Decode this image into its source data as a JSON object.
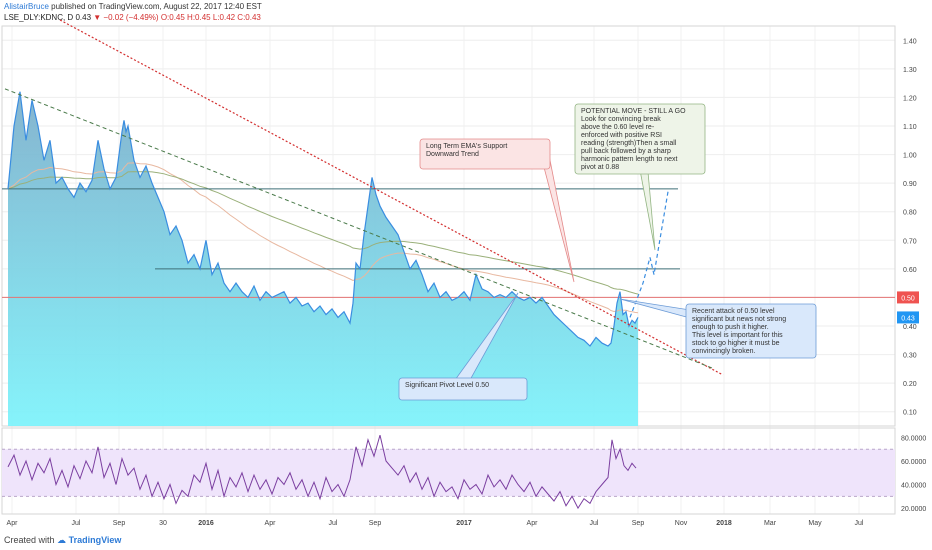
{
  "header": {
    "author": "AlistairBruce",
    "published": "published on TradingView.com, August 22, 2017 12:40 EST",
    "symbol": "LSE_DLY:KDNC, D",
    "last": "0.43",
    "change": "−0.02 (−4.49%)",
    "ohlc": "O:0.45 H:0.45 L:0.42 C:0.43"
  },
  "footer": {
    "created_with": "Created with",
    "brand": "TradingView"
  },
  "colors": {
    "price_line": "#3a8de0",
    "price_fill_top": "#7fb0cc",
    "price_fill_bottom": "#7ff3fb",
    "rsi": "#7b3fa0",
    "rsi_band": "#efe4fb",
    "ema_fast": "#e8b8a0",
    "ema_slow": "#9ab07a",
    "trend_red": "#d32f2f",
    "trend_green": "#4a7a4a",
    "level_red": "#e57373",
    "level_teal": "#3f6f78"
  },
  "chart_data": {
    "type": "line",
    "x_ticks": [
      "Apr",
      "Jul",
      "Sep",
      "30",
      "2016",
      "Apr",
      "Jul",
      "Sep",
      "2017",
      "Apr",
      "Jul",
      "Sep",
      "Nov",
      "2018",
      "Mar",
      "May",
      "Jul"
    ],
    "y_ticks": [
      "1.40",
      "1.30",
      "1.20",
      "1.10",
      "1.00",
      "0.90",
      "0.80",
      "0.70",
      "0.60",
      "0.50",
      "0.40",
      "0.30",
      "0.20",
      "0.10"
    ],
    "ylim": [
      0.05,
      1.45
    ],
    "price_labels": [
      "0.50",
      "0.43"
    ],
    "rsi_ticks": [
      "80.0000",
      "60.0000",
      "40.0000",
      "20.0000"
    ],
    "rsi_ylim": [
      15,
      88
    ],
    "rsi_band": [
      30,
      70
    ],
    "price_series": {
      "name": "KDNC",
      "x": [
        0,
        6,
        12,
        18,
        24,
        30,
        36,
        42,
        48,
        54,
        60,
        66,
        72,
        78,
        84,
        90,
        96,
        102,
        108,
        114,
        116,
        118,
        120,
        126,
        132,
        138,
        144,
        150,
        156,
        162,
        168,
        174,
        180,
        186,
        192,
        198,
        204,
        210,
        216,
        222,
        228,
        234,
        240,
        246,
        252,
        258,
        264,
        270,
        276,
        282,
        288,
        294,
        300,
        306,
        312,
        318,
        324,
        330,
        336,
        342,
        345,
        348,
        352,
        356,
        360,
        364,
        368,
        372,
        378,
        384,
        390,
        396,
        402,
        408,
        414,
        420,
        426,
        432,
        438,
        444,
        450,
        456,
        462,
        468,
        474,
        480,
        486,
        492,
        498,
        504,
        510,
        516,
        522,
        528,
        534,
        540,
        546,
        552,
        558,
        564,
        570,
        576,
        582,
        588,
        594,
        600,
        603,
        606,
        609,
        612,
        615,
        618,
        621,
        624,
        627,
        630
      ],
      "y": [
        0.88,
        1.1,
        1.22,
        1.05,
        1.19,
        1.1,
        0.98,
        1.05,
        0.9,
        0.92,
        0.88,
        0.85,
        0.9,
        0.87,
        0.91,
        1.05,
        0.95,
        0.88,
        0.92,
        1.08,
        1.12,
        1.08,
        1.1,
        0.98,
        0.92,
        0.96,
        0.9,
        0.85,
        0.8,
        0.72,
        0.75,
        0.7,
        0.62,
        0.65,
        0.6,
        0.7,
        0.58,
        0.62,
        0.55,
        0.52,
        0.55,
        0.52,
        0.5,
        0.54,
        0.49,
        0.52,
        0.5,
        0.51,
        0.52,
        0.48,
        0.5,
        0.47,
        0.48,
        0.45,
        0.47,
        0.44,
        0.46,
        0.43,
        0.45,
        0.41,
        0.48,
        0.62,
        0.6,
        0.72,
        0.82,
        0.92,
        0.86,
        0.82,
        0.78,
        0.75,
        0.72,
        0.66,
        0.6,
        0.63,
        0.58,
        0.52,
        0.55,
        0.5,
        0.52,
        0.49,
        0.5,
        0.52,
        0.49,
        0.58,
        0.53,
        0.52,
        0.5,
        0.51,
        0.5,
        0.52,
        0.5,
        0.49,
        0.5,
        0.48,
        0.5,
        0.47,
        0.44,
        0.42,
        0.4,
        0.38,
        0.36,
        0.35,
        0.33,
        0.36,
        0.34,
        0.33,
        0.34,
        0.4,
        0.48,
        0.52,
        0.44,
        0.45,
        0.4,
        0.42,
        0.41,
        0.43
      ]
    },
    "rsi_series": {
      "name": "RSI",
      "x": [
        0,
        6,
        12,
        18,
        24,
        30,
        36,
        42,
        48,
        54,
        60,
        66,
        72,
        78,
        84,
        90,
        96,
        102,
        108,
        114,
        120,
        126,
        132,
        138,
        144,
        150,
        156,
        162,
        168,
        174,
        180,
        186,
        192,
        198,
        204,
        210,
        216,
        222,
        228,
        234,
        240,
        246,
        252,
        258,
        264,
        270,
        276,
        282,
        288,
        294,
        300,
        306,
        312,
        318,
        324,
        330,
        336,
        342,
        348,
        354,
        360,
        366,
        372,
        378,
        384,
        390,
        396,
        402,
        408,
        414,
        420,
        426,
        432,
        438,
        444,
        450,
        456,
        462,
        468,
        474,
        480,
        486,
        492,
        498,
        504,
        510,
        516,
        522,
        528,
        534,
        540,
        546,
        552,
        558,
        564,
        570,
        576,
        582,
        588,
        594,
        600,
        604,
        608,
        612,
        616,
        620,
        624,
        628
      ],
      "y": [
        55,
        65,
        48,
        60,
        44,
        58,
        50,
        62,
        40,
        52,
        38,
        56,
        45,
        60,
        50,
        72,
        46,
        58,
        40,
        62,
        48,
        54,
        36,
        48,
        30,
        42,
        28,
        40,
        24,
        35,
        30,
        48,
        42,
        58,
        36,
        52,
        30,
        46,
        38,
        50,
        34,
        48,
        36,
        44,
        32,
        46,
        40,
        50,
        36,
        44,
        30,
        42,
        28,
        46,
        34,
        40,
        30,
        44,
        72,
        56,
        78,
        64,
        82,
        60,
        54,
        48,
        56,
        42,
        50,
        36,
        46,
        30,
        42,
        34,
        38,
        28,
        44,
        36,
        40,
        32,
        48,
        38,
        44,
        36,
        48,
        40,
        34,
        42,
        30,
        38,
        32,
        26,
        34,
        22,
        30,
        20,
        28,
        24,
        34,
        40,
        46,
        78,
        62,
        70,
        56,
        52,
        58,
        54
      ]
    },
    "annotations": [
      {
        "label": "Long Term EMA's Support Downward Trend"
      },
      {
        "label": "POTENTIAL MOVE - STILL A GO Look for convincing break above the 0.60 level re-enforced with positive RSI reading (strength)Then a small pull back followed by a sharp harmonic pattern length to next pivot at 0.88"
      },
      {
        "label": "Recent attack of 0.50 level significant but news not strong enough to push it higher. This level is important for this stock to go higher it must be convincingly broken."
      },
      {
        "label": "Significant Pivot Level 0.50"
      }
    ],
    "horizontal_levels": [
      0.88,
      0.6,
      0.5
    ],
    "grid": true,
    "legend": "none"
  }
}
